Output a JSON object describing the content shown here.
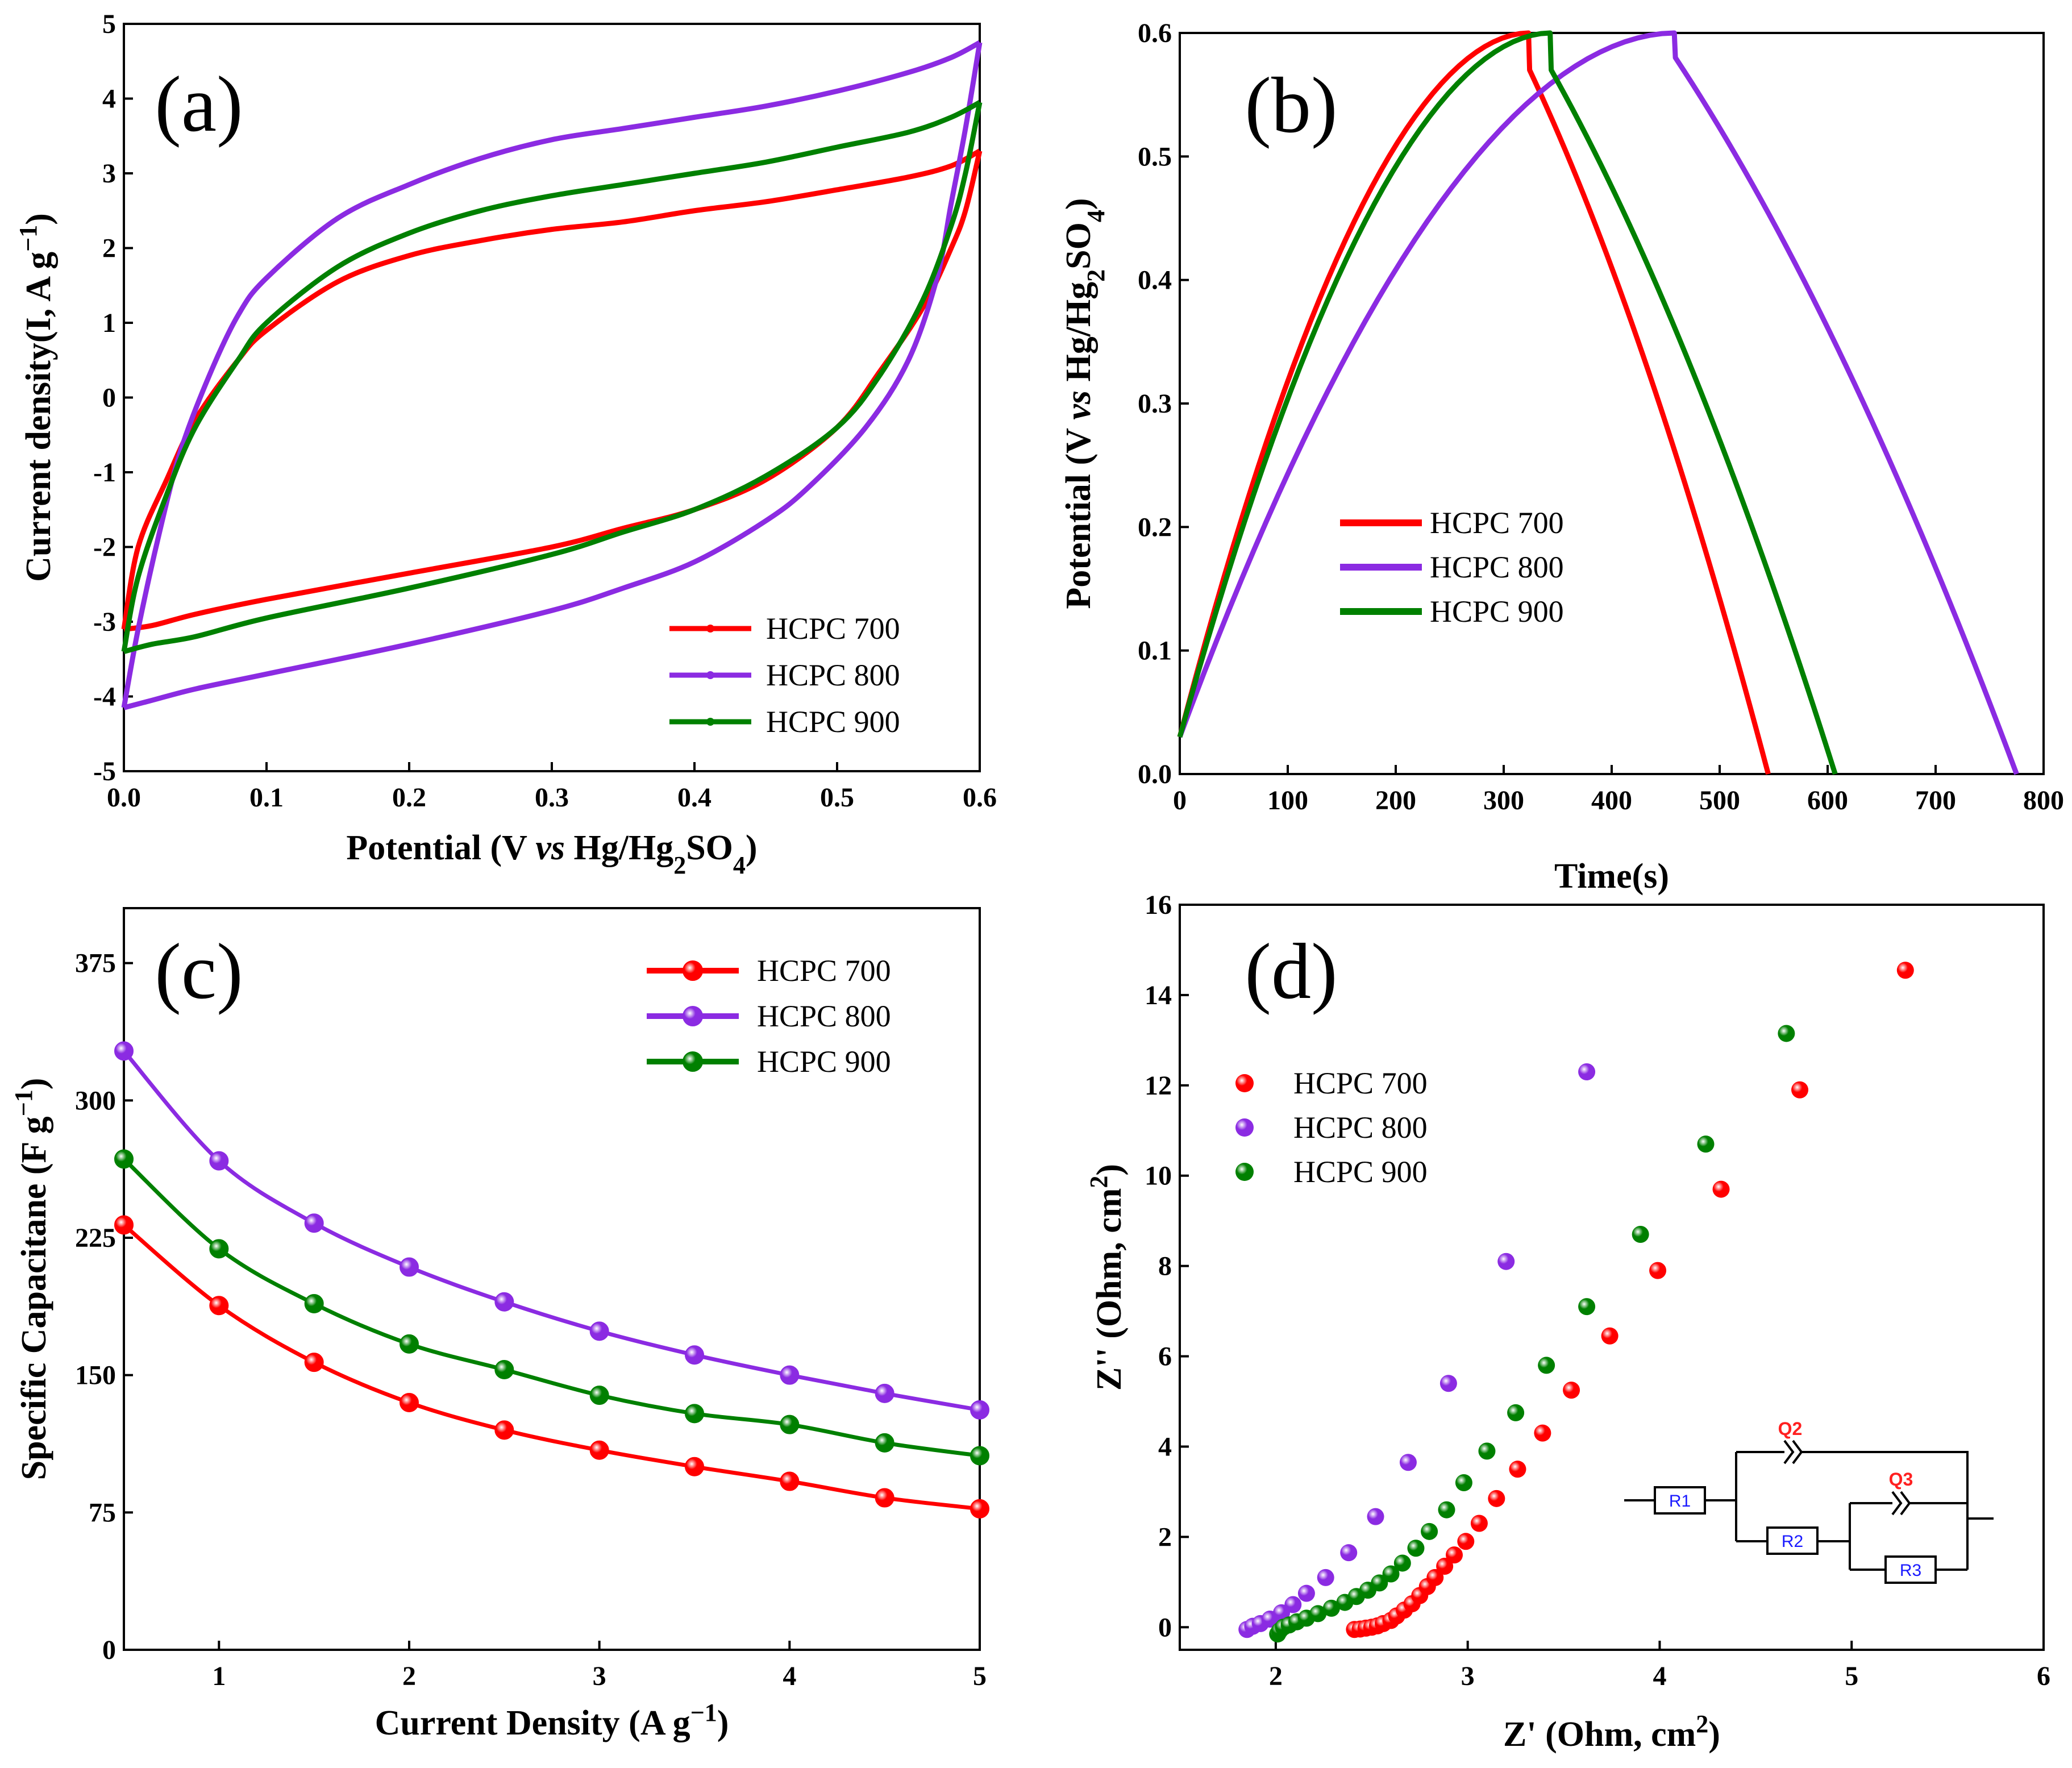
{
  "chart_data": [
    {
      "type": "line",
      "panel": "(a)",
      "xlabel": "Potential (V vs Hg/Hg2SO4)",
      "xlabel_parts": [
        "Potential (V ",
        "vs",
        " Hg/Hg",
        "2",
        "SO",
        "4",
        ")"
      ],
      "ylabel": "Current density(I, A g−1)",
      "ylabel_parts": [
        "Current density(I, A g",
        "−1",
        ")"
      ],
      "xlim": [
        0,
        0.6
      ],
      "ylim": [
        -5,
        5
      ],
      "xticks": [
        "0.0",
        "0.1",
        "0.2",
        "0.3",
        "0.4",
        "0.5",
        "0.6"
      ],
      "yticks": [
        "-5",
        "-4",
        "-3",
        "-2",
        "-1",
        "0",
        "1",
        "2",
        "3",
        "4",
        "5"
      ],
      "legend_position": "bottom-right",
      "series": [
        {
          "name": "HCPC 700",
          "color": "#ff0000",
          "anodic": [
            [
              0.0,
              -3.1
            ],
            [
              0.01,
              -2.0
            ],
            [
              0.03,
              -1.1
            ],
            [
              0.05,
              -0.3
            ],
            [
              0.08,
              0.5
            ],
            [
              0.1,
              0.9
            ],
            [
              0.15,
              1.55
            ],
            [
              0.2,
              1.9
            ],
            [
              0.25,
              2.1
            ],
            [
              0.3,
              2.25
            ],
            [
              0.35,
              2.35
            ],
            [
              0.4,
              2.5
            ],
            [
              0.45,
              2.62
            ],
            [
              0.5,
              2.78
            ],
            [
              0.55,
              2.95
            ],
            [
              0.58,
              3.1
            ],
            [
              0.6,
              3.3
            ]
          ],
          "cathodic": [
            [
              0.6,
              3.3
            ],
            [
              0.59,
              2.5
            ],
            [
              0.58,
              2.0
            ],
            [
              0.56,
              1.2
            ],
            [
              0.53,
              0.35
            ],
            [
              0.5,
              -0.4
            ],
            [
              0.45,
              -1.1
            ],
            [
              0.4,
              -1.5
            ],
            [
              0.35,
              -1.75
            ],
            [
              0.3,
              -2.0
            ],
            [
              0.2,
              -2.35
            ],
            [
              0.1,
              -2.7
            ],
            [
              0.05,
              -2.9
            ],
            [
              0.02,
              -3.05
            ],
            [
              0.0,
              -3.1
            ]
          ]
        },
        {
          "name": "HCPC 800",
          "color": "#8b2be2",
          "anodic": [
            [
              0.0,
              -4.15
            ],
            [
              0.01,
              -3.1
            ],
            [
              0.025,
              -1.8
            ],
            [
              0.04,
              -0.7
            ],
            [
              0.06,
              0.3
            ],
            [
              0.08,
              1.1
            ],
            [
              0.1,
              1.6
            ],
            [
              0.15,
              2.4
            ],
            [
              0.2,
              2.85
            ],
            [
              0.25,
              3.2
            ],
            [
              0.3,
              3.45
            ],
            [
              0.35,
              3.6
            ],
            [
              0.4,
              3.75
            ],
            [
              0.45,
              3.9
            ],
            [
              0.5,
              4.1
            ],
            [
              0.55,
              4.35
            ],
            [
              0.58,
              4.55
            ],
            [
              0.6,
              4.75
            ]
          ],
          "cathodic": [
            [
              0.6,
              4.75
            ],
            [
              0.59,
              3.6
            ],
            [
              0.58,
              2.6
            ],
            [
              0.57,
              1.6
            ],
            [
              0.55,
              0.5
            ],
            [
              0.52,
              -0.4
            ],
            [
              0.48,
              -1.2
            ],
            [
              0.45,
              -1.65
            ],
            [
              0.4,
              -2.2
            ],
            [
              0.35,
              -2.55
            ],
            [
              0.3,
              -2.85
            ],
            [
              0.2,
              -3.3
            ],
            [
              0.1,
              -3.7
            ],
            [
              0.05,
              -3.9
            ],
            [
              0.02,
              -4.05
            ],
            [
              0.0,
              -4.15
            ]
          ]
        },
        {
          "name": "HCPC 900",
          "color": "#008000",
          "anodic": [
            [
              0.0,
              -3.4
            ],
            [
              0.01,
              -2.4
            ],
            [
              0.03,
              -1.3
            ],
            [
              0.05,
              -0.4
            ],
            [
              0.08,
              0.5
            ],
            [
              0.1,
              1.0
            ],
            [
              0.15,
              1.75
            ],
            [
              0.2,
              2.2
            ],
            [
              0.25,
              2.5
            ],
            [
              0.3,
              2.7
            ],
            [
              0.35,
              2.85
            ],
            [
              0.4,
              3.0
            ],
            [
              0.45,
              3.15
            ],
            [
              0.5,
              3.35
            ],
            [
              0.55,
              3.55
            ],
            [
              0.58,
              3.75
            ],
            [
              0.6,
              3.95
            ]
          ],
          "cathodic": [
            [
              0.6,
              3.95
            ],
            [
              0.59,
              3.0
            ],
            [
              0.58,
              2.3
            ],
            [
              0.56,
              1.3
            ],
            [
              0.53,
              0.3
            ],
            [
              0.5,
              -0.4
            ],
            [
              0.45,
              -1.05
            ],
            [
              0.4,
              -1.5
            ],
            [
              0.35,
              -1.8
            ],
            [
              0.3,
              -2.1
            ],
            [
              0.2,
              -2.55
            ],
            [
              0.1,
              -2.95
            ],
            [
              0.05,
              -3.2
            ],
            [
              0.02,
              -3.3
            ],
            [
              0.0,
              -3.4
            ]
          ]
        }
      ]
    },
    {
      "type": "line",
      "panel": "(b)",
      "xlabel": "Time(s)",
      "ylabel": "Potential (V vs Hg/Hg2SO4)",
      "ylabel_parts": [
        "Potential (V ",
        "vs",
        " Hg/Hg",
        "2",
        "SO",
        "4",
        ")"
      ],
      "xlim": [
        0,
        800
      ],
      "ylim": [
        0,
        0.6
      ],
      "xticks": [
        "0",
        "100",
        "200",
        "300",
        "400",
        "500",
        "600",
        "700",
        "800"
      ],
      "yticks": [
        "0.0",
        "0.1",
        "0.2",
        "0.3",
        "0.4",
        "0.5",
        "0.6"
      ],
      "legend_position": "center-left",
      "series": [
        {
          "name": "HCPC 700",
          "color": "#ff0000",
          "t_charge": 323,
          "t_end": 545,
          "drop": 0.03
        },
        {
          "name": "HCPC 800",
          "color": "#8b2be2",
          "t_charge": 458,
          "t_end": 775,
          "drop": 0.02
        },
        {
          "name": "HCPC 900",
          "color": "#008000",
          "t_charge": 343,
          "t_end": 607,
          "drop": 0.03
        }
      ]
    },
    {
      "type": "line",
      "panel": "(c)",
      "xlabel": "Current Density (A g−1)",
      "xlabel_parts": [
        "Current Density (A g",
        "−1",
        ")"
      ],
      "ylabel": "Specific Capacitane (F g−1)",
      "ylabel_parts": [
        "Specific Capacitane (F g",
        "−1",
        ")"
      ],
      "xlim": [
        0.5,
        5
      ],
      "ylim": [
        0,
        405
      ],
      "xticks": [
        "1",
        "2",
        "3",
        "4",
        "5"
      ],
      "yticks": [
        "0",
        "75",
        "150",
        "225",
        "300",
        "375"
      ],
      "legend_position": "top-right",
      "x": [
        0.5,
        1,
        1.5,
        2,
        2.5,
        3,
        3.5,
        4,
        4.5,
        5
      ],
      "series": [
        {
          "name": "HCPC 700",
          "color": "#ff0000",
          "values": [
            232,
            188,
            157,
            135,
            120,
            109,
            100,
            92,
            83,
            77
          ]
        },
        {
          "name": "HCPC 800",
          "color": "#8b2be2",
          "values": [
            327,
            267,
            233,
            209,
            190,
            174,
            161,
            150,
            140,
            131
          ]
        },
        {
          "name": "HCPC 900",
          "color": "#008000",
          "values": [
            268,
            219,
            189,
            167,
            153,
            139,
            129,
            123,
            113,
            106
          ]
        }
      ]
    },
    {
      "type": "scatter",
      "panel": "(d)",
      "xlabel": "Z' (Ohm, cm2)",
      "xlabel_parts": [
        "Z' (Ohm, cm",
        "2",
        ")"
      ],
      "ylabel": "Z'' (Ohm, cm2)",
      "ylabel_parts": [
        "Z'' (Ohm, cm",
        "2",
        ")"
      ],
      "xlim": [
        1.5,
        6
      ],
      "ylim": [
        -0.5,
        16
      ],
      "xticks": [
        "2",
        "3",
        "4",
        "5",
        "6"
      ],
      "yticks": [
        "0",
        "2",
        "4",
        "6",
        "8",
        "10",
        "12",
        "14",
        "16"
      ],
      "legend_position": "top-left",
      "series": [
        {
          "name": "HCPC 700",
          "color": "#ff0000",
          "points": [
            [
              2.41,
              -0.05
            ],
            [
              2.44,
              -0.04
            ],
            [
              2.47,
              -0.02
            ],
            [
              2.5,
              0.0
            ],
            [
              2.53,
              0.03
            ],
            [
              2.56,
              0.08
            ],
            [
              2.6,
              0.15
            ],
            [
              2.63,
              0.25
            ],
            [
              2.67,
              0.38
            ],
            [
              2.71,
              0.52
            ],
            [
              2.75,
              0.7
            ],
            [
              2.79,
              0.9
            ],
            [
              2.83,
              1.1
            ],
            [
              2.88,
              1.35
            ],
            [
              2.93,
              1.6
            ],
            [
              2.99,
              1.9
            ],
            [
              3.06,
              2.3
            ],
            [
              3.15,
              2.85
            ],
            [
              3.26,
              3.5
            ],
            [
              3.39,
              4.3
            ],
            [
              3.54,
              5.25
            ],
            [
              3.74,
              6.45
            ],
            [
              3.99,
              7.9
            ],
            [
              4.32,
              9.7
            ],
            [
              4.73,
              11.9
            ],
            [
              5.28,
              14.55
            ]
          ]
        },
        {
          "name": "HCPC 800",
          "color": "#8b2be2",
          "points": [
            [
              1.85,
              -0.05
            ],
            [
              1.88,
              0.02
            ],
            [
              1.92,
              0.08
            ],
            [
              1.97,
              0.18
            ],
            [
              2.03,
              0.32
            ],
            [
              2.09,
              0.5
            ],
            [
              2.16,
              0.75
            ],
            [
              2.26,
              1.1
            ],
            [
              2.38,
              1.65
            ],
            [
              2.52,
              2.45
            ],
            [
              2.69,
              3.65
            ],
            [
              2.9,
              5.4
            ],
            [
              3.2,
              8.1
            ],
            [
              3.62,
              12.3
            ]
          ]
        },
        {
          "name": "HCPC 900",
          "color": "#008000",
          "points": [
            [
              2.01,
              -0.15
            ],
            [
              2.02,
              -0.08
            ],
            [
              2.04,
              0.0
            ],
            [
              2.07,
              0.05
            ],
            [
              2.11,
              0.12
            ],
            [
              2.16,
              0.2
            ],
            [
              2.22,
              0.3
            ],
            [
              2.29,
              0.42
            ],
            [
              2.36,
              0.55
            ],
            [
              2.42,
              0.68
            ],
            [
              2.48,
              0.82
            ],
            [
              2.54,
              0.98
            ],
            [
              2.6,
              1.18
            ],
            [
              2.66,
              1.42
            ],
            [
              2.73,
              1.75
            ],
            [
              2.8,
              2.12
            ],
            [
              2.89,
              2.6
            ],
            [
              2.98,
              3.2
            ],
            [
              3.1,
              3.9
            ],
            [
              3.25,
              4.75
            ],
            [
              3.41,
              5.8
            ],
            [
              3.62,
              7.1
            ],
            [
              3.9,
              8.7
            ],
            [
              4.24,
              10.7
            ],
            [
              4.66,
              13.15
            ]
          ]
        }
      ],
      "circuit": {
        "r1": "R1",
        "r2": "R2",
        "r3": "R3",
        "q2": "Q2",
        "q3": "Q3"
      }
    }
  ]
}
